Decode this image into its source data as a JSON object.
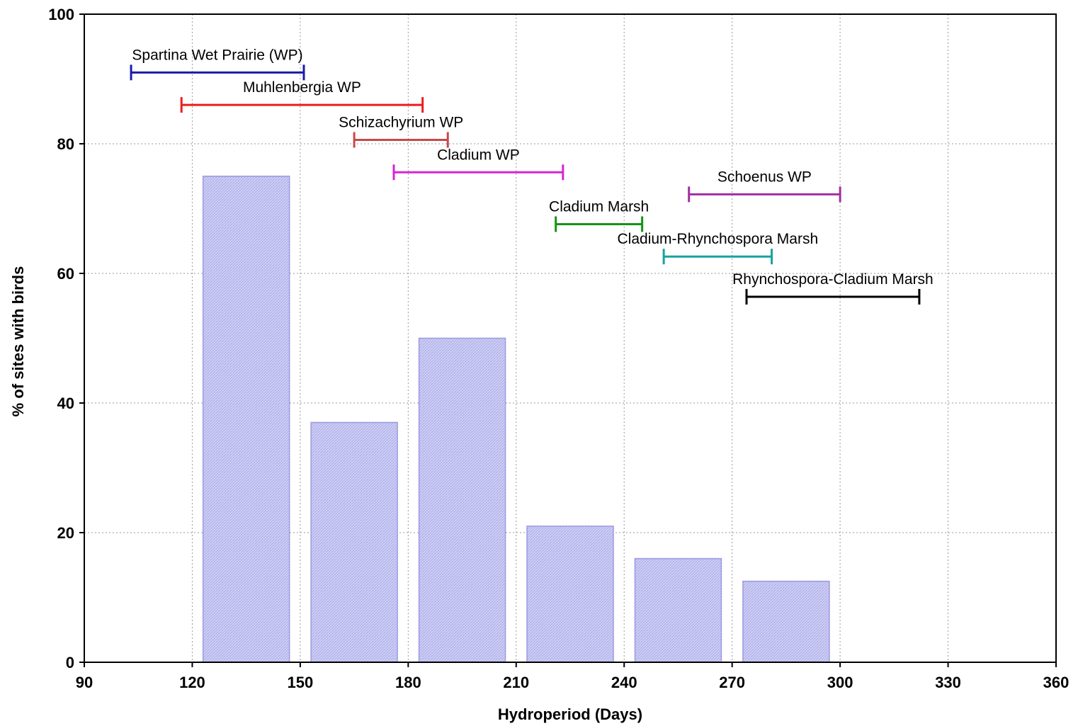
{
  "chart_data": {
    "type": "bar",
    "xlabel": "Hydroperiod (Days)",
    "ylabel": "% of sites with birds",
    "xlim": [
      90,
      360
    ],
    "ylim": [
      0,
      100
    ],
    "xticks": [
      90,
      120,
      150,
      180,
      210,
      240,
      270,
      300,
      330,
      360
    ],
    "yticks": [
      0,
      20,
      40,
      60,
      80,
      100
    ],
    "grid": true,
    "bar_fill": "#c8c8f5",
    "bar_edge": "#9a9ae0",
    "bars": [
      {
        "x_start": 123,
        "x_end": 147,
        "value": 75
      },
      {
        "x_start": 153,
        "x_end": 177,
        "value": 37
      },
      {
        "x_start": 183,
        "x_end": 207,
        "value": 50
      },
      {
        "x_start": 213,
        "x_end": 237,
        "value": 21
      },
      {
        "x_start": 243,
        "x_end": 267,
        "value": 16
      },
      {
        "x_start": 273,
        "x_end": 297,
        "value": 12.5
      }
    ],
    "ranges": [
      {
        "label": "Spartina Wet Prairie (WP)",
        "x_start": 103,
        "x_end": 151,
        "y": 91,
        "color": "#1c1ca8"
      },
      {
        "label": "Muhlenbergia WP",
        "x_start": 117,
        "x_end": 184,
        "y": 86,
        "color": "#ee1c1c"
      },
      {
        "label": "Schizachyrium WP",
        "x_start": 165,
        "x_end": 191,
        "y": 80.6,
        "color": "#c84848"
      },
      {
        "label": "Cladium WP",
        "x_start": 176,
        "x_end": 223,
        "y": 75.6,
        "color": "#d426d4"
      },
      {
        "label": "Schoenus WP",
        "x_start": 258,
        "x_end": 300,
        "y": 72.2,
        "color": "#a22ea2"
      },
      {
        "label": "Cladium Marsh",
        "x_start": 221,
        "x_end": 245,
        "y": 67.6,
        "color": "#149414"
      },
      {
        "label": "Cladium-Rhynchospora Marsh",
        "x_start": 251,
        "x_end": 281,
        "y": 62.6,
        "color": "#16a2a2"
      },
      {
        "label": "Rhynchospora-Cladium Marsh",
        "x_start": 274,
        "x_end": 322,
        "y": 56.4,
        "color": "#000000"
      }
    ]
  }
}
